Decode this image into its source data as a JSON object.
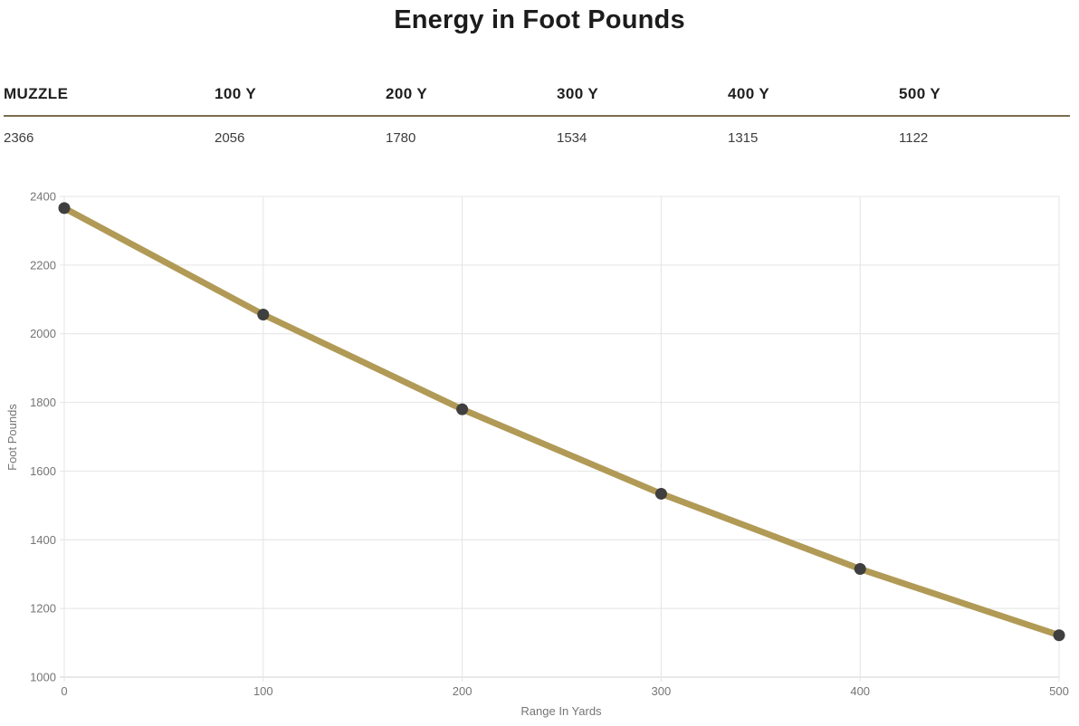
{
  "title": "Energy in Foot Pounds",
  "table": {
    "headers": [
      "MUZZLE",
      "100 Y",
      "200 Y",
      "300 Y",
      "400 Y",
      "500 Y"
    ],
    "values": [
      "2366",
      "2056",
      "1780",
      "1534",
      "1315",
      "1122"
    ]
  },
  "chart_data": {
    "type": "line",
    "title": "Energy in Foot Pounds",
    "x": [
      0,
      100,
      200,
      300,
      400,
      500
    ],
    "series": [
      {
        "name": "Energy in Foot Pounds",
        "values": [
          2366,
          2056,
          1780,
          1534,
          1315,
          1122
        ]
      }
    ],
    "xlabel": "Range In Yards",
    "ylabel": "Foot Pounds",
    "xlim": [
      0,
      500
    ],
    "ylim": [
      1000,
      2400
    ],
    "xticks": [
      0,
      100,
      200,
      300,
      400,
      500
    ],
    "yticks": [
      1000,
      1200,
      1400,
      1600,
      1800,
      2000,
      2200,
      2400
    ],
    "grid": true,
    "legend": "none",
    "line_color": "#b19a56",
    "point_color": "#3f3f3f"
  },
  "colors": {
    "divider": "#7b6c50",
    "grid": "#e4e4e4",
    "axis": "#d2d2d2",
    "tick_label": "#757575",
    "axis_title": "#757575"
  }
}
